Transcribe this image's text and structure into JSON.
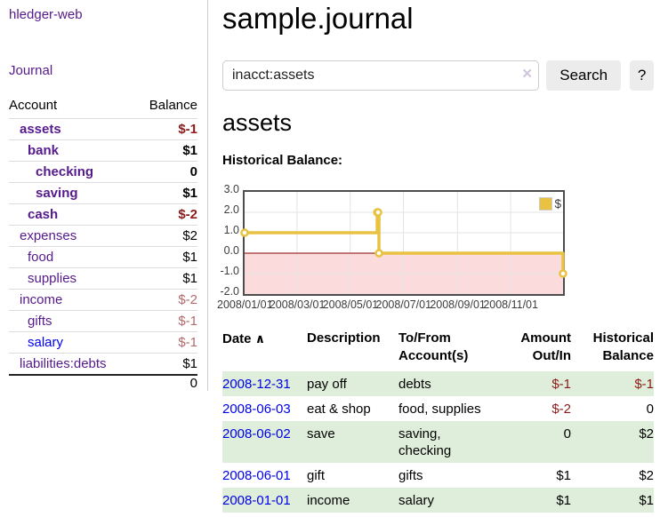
{
  "sidebar": {
    "brand": "hledger-web",
    "journal_link": "Journal",
    "accounts_table": {
      "headers": {
        "account": "Account",
        "balance": "Balance"
      },
      "rows": [
        {
          "name": "assets",
          "balance": "$-1",
          "level": 1,
          "bold": true,
          "link": "purple",
          "balance_color": "neg"
        },
        {
          "name": "bank",
          "balance": "$1",
          "level": 2,
          "bold": true,
          "link": "purple",
          "balance_color": "plain"
        },
        {
          "name": "checking",
          "balance": "0",
          "level": 3,
          "bold": true,
          "link": "purple",
          "balance_color": "plain"
        },
        {
          "name": "saving",
          "balance": "$1",
          "level": 3,
          "bold": true,
          "link": "purple",
          "balance_color": "plain"
        },
        {
          "name": "cash",
          "balance": "$-2",
          "level": 2,
          "bold": true,
          "link": "purple",
          "balance_color": "neg"
        },
        {
          "name": "expenses",
          "balance": "$2",
          "level": 1,
          "bold": false,
          "link": "purple",
          "balance_color": "plain"
        },
        {
          "name": "food",
          "balance": "$1",
          "level": 2,
          "bold": false,
          "link": "purple",
          "balance_color": "plain"
        },
        {
          "name": "supplies",
          "balance": "$1",
          "level": 2,
          "bold": false,
          "link": "purple",
          "balance_color": "plain"
        },
        {
          "name": "income",
          "balance": "$-2",
          "level": 1,
          "bold": false,
          "link": "purple",
          "balance_color": "neg-soft"
        },
        {
          "name": "gifts",
          "balance": "$-1",
          "level": 2,
          "bold": false,
          "link": "purple",
          "balance_color": "neg-soft"
        },
        {
          "name": "salary",
          "balance": "$-1",
          "level": 2,
          "bold": false,
          "link": "blue",
          "balance_color": "neg-soft"
        },
        {
          "name": "liabilities:debts",
          "balance": "$1",
          "level": 1,
          "bold": false,
          "link": "purple",
          "balance_color": "plain"
        }
      ],
      "total": "0"
    }
  },
  "header": {
    "title": "sample.journal"
  },
  "search": {
    "value": "inacct:assets",
    "clear_icon": "×",
    "button_label": "Search",
    "help_label": "?"
  },
  "account_page": {
    "title": "assets",
    "chart_label": "Historical Balance:"
  },
  "chart_data": {
    "type": "line",
    "title": "Historical Balance",
    "series": [
      {
        "name": "$",
        "color": "#e8c240",
        "step": true,
        "points": [
          [
            "2008-01-01",
            1.0
          ],
          [
            "2008-06-01",
            2.0
          ],
          [
            "2008-06-02",
            2.0
          ],
          [
            "2008-06-03",
            0.0
          ],
          [
            "2008-12-31",
            -1.0
          ]
        ]
      }
    ],
    "xlim": [
      "2008-01-01",
      "2008-12-31"
    ],
    "ylim": [
      -2.0,
      3.0
    ],
    "yticks": [
      3.0,
      2.0,
      1.0,
      0.0,
      -1.0,
      -2.0
    ],
    "ytick_labels": [
      "3.0",
      "2.0",
      "1.0",
      "0.0",
      "-1.0",
      "-2.0"
    ],
    "xticks": [
      "2008-01-01",
      "2008-03-01",
      "2008-05-01",
      "2008-07-01",
      "2008-09-01",
      "2008-11-01"
    ],
    "xtick_labels": [
      "2008/01/01",
      "2008/03/01",
      "2008/05/01",
      "2008/07/01",
      "2008/09/01",
      "2008/11/01"
    ],
    "legend": {
      "label": "$",
      "position": "top-right"
    },
    "grid": true,
    "grid_color": "#e3e3e3",
    "zero_line_color": "#8b0000",
    "negative_region_color": "#fbdbdb"
  },
  "register_table": {
    "sort_icon": "∧",
    "headers": {
      "date": "Date",
      "description": "Description",
      "accounts": "To/From Account(s)",
      "amount": "Amount Out/In",
      "balance": "Historical Balance"
    },
    "rows": [
      {
        "date": "2008-12-31",
        "description": "pay off",
        "accounts": "debts",
        "amount": "$-1",
        "balance": "$-1",
        "amount_color": "neg",
        "balance_color": "neg",
        "shaded": true
      },
      {
        "date": "2008-06-03",
        "description": "eat & shop",
        "accounts": "food, supplies",
        "amount": "$-2",
        "balance": "0",
        "amount_color": "neg",
        "balance_color": "plain",
        "shaded": false
      },
      {
        "date": "2008-06-02",
        "description": "save",
        "accounts": "saving, checking",
        "amount": "0",
        "balance": "$2",
        "amount_color": "plain",
        "balance_color": "plain",
        "shaded": true
      },
      {
        "date": "2008-06-01",
        "description": "gift",
        "accounts": "gifts",
        "amount": "$1",
        "balance": "$2",
        "amount_color": "plain",
        "balance_color": "plain",
        "shaded": false
      },
      {
        "date": "2008-01-01",
        "description": "income",
        "accounts": "salary",
        "amount": "$1",
        "balance": "$1",
        "amount_color": "plain",
        "balance_color": "plain",
        "shaded": true
      }
    ]
  },
  "colors": {
    "link_purple": "#551a8b",
    "link_blue": "#0000ee",
    "negative_strong": "#8b1a1a",
    "negative_soft": "#b36a6a",
    "row_shade_green": "#dfeeda",
    "chart_line_gold": "#e8c240",
    "chart_negative_pink": "#fbdbdb",
    "zero_line_dark_red": "#8b0000"
  }
}
